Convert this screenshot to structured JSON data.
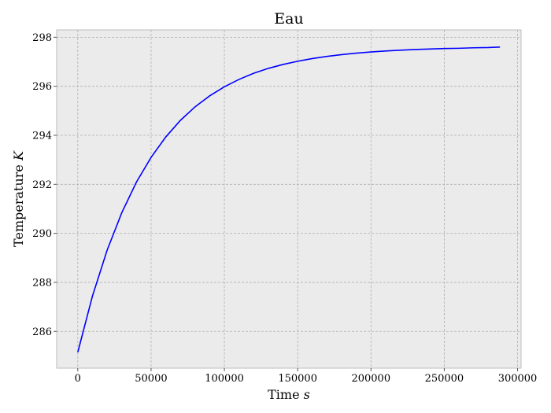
{
  "chart_data": {
    "type": "line",
    "title": "Eau",
    "xlabel": "Time",
    "xlabel_unit": "s",
    "ylabel": "Temperature",
    "ylabel_unit": "K",
    "xlim": [
      -14400,
      302400
    ],
    "ylim": [
      284.5,
      298.3
    ],
    "x_ticks": [
      0,
      50000,
      100000,
      150000,
      200000,
      250000,
      300000
    ],
    "x_tick_labels": [
      "0",
      "50000",
      "100000",
      "150000",
      "200000",
      "250000",
      "300000"
    ],
    "y_ticks": [
      286,
      288,
      290,
      292,
      294,
      296,
      298
    ],
    "y_tick_labels": [
      "286",
      "288",
      "290",
      "292",
      "294",
      "296",
      "298"
    ],
    "grid": true,
    "background": "#ebebeb",
    "series": [
      {
        "color": "#0000ff",
        "x": [
          0,
          10000,
          20000,
          30000,
          40000,
          50000,
          60000,
          70000,
          80000,
          90000,
          100000,
          110000,
          120000,
          130000,
          140000,
          150000,
          160000,
          170000,
          180000,
          190000,
          200000,
          210000,
          220000,
          230000,
          240000,
          250000,
          260000,
          270000,
          280000,
          288000
        ],
        "y": [
          285.15,
          287.44,
          289.31,
          290.84,
          292.09,
          293.1,
          293.93,
          294.61,
          295.16,
          295.61,
          295.98,
          296.28,
          296.53,
          296.73,
          296.89,
          297.02,
          297.13,
          297.22,
          297.29,
          297.35,
          297.4,
          297.44,
          297.47,
          297.5,
          297.52,
          297.54,
          297.55,
          297.57,
          297.58,
          297.6
        ]
      }
    ]
  }
}
